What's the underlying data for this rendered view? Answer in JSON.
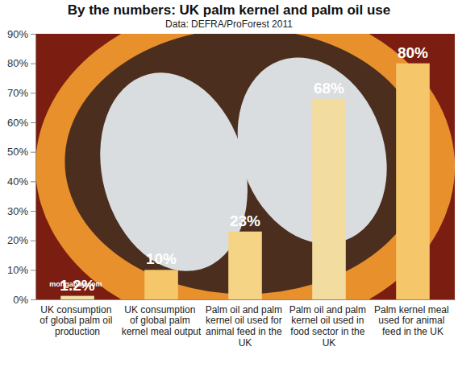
{
  "chart_data": {
    "type": "bar",
    "title": "By the numbers: UK palm kernel and palm oil use",
    "subtitle": "Data: DEFRA/ProForest 2011",
    "categories": [
      "UK consumption of global palm oil production",
      "UK consumption of global palm kernel meal output",
      "Palm oil and palm kernel oil used for animal feed in the UK",
      "Palm oil and palm kernel oil used in food sector in the UK",
      "Palm kernel meal used for animal feed in the UK"
    ],
    "values": [
      1.2,
      10,
      23,
      68,
      80
    ],
    "value_labels": [
      "1.2%",
      "10%",
      "23%",
      "68%",
      "80%"
    ],
    "colors": [
      "#f2dfa6",
      "#f5c76a",
      "#f5d486",
      "#f2dca0",
      "#f5c76a"
    ],
    "ylim": [
      0,
      90
    ],
    "yticks": [
      {
        "value": 0,
        "label": "0%"
      },
      {
        "value": 10,
        "label": "10%"
      },
      {
        "value": 20,
        "label": "20%"
      },
      {
        "value": 30,
        "label": "30%"
      },
      {
        "value": 40,
        "label": "40%"
      },
      {
        "value": 50,
        "label": "50%"
      },
      {
        "value": 60,
        "label": "60%"
      },
      {
        "value": 70,
        "label": "70%"
      },
      {
        "value": 80,
        "label": "80%"
      },
      {
        "value": 90,
        "label": "90%"
      }
    ],
    "grid": false,
    "data_labels": true,
    "annotations": [
      "mongabay.com"
    ]
  }
}
